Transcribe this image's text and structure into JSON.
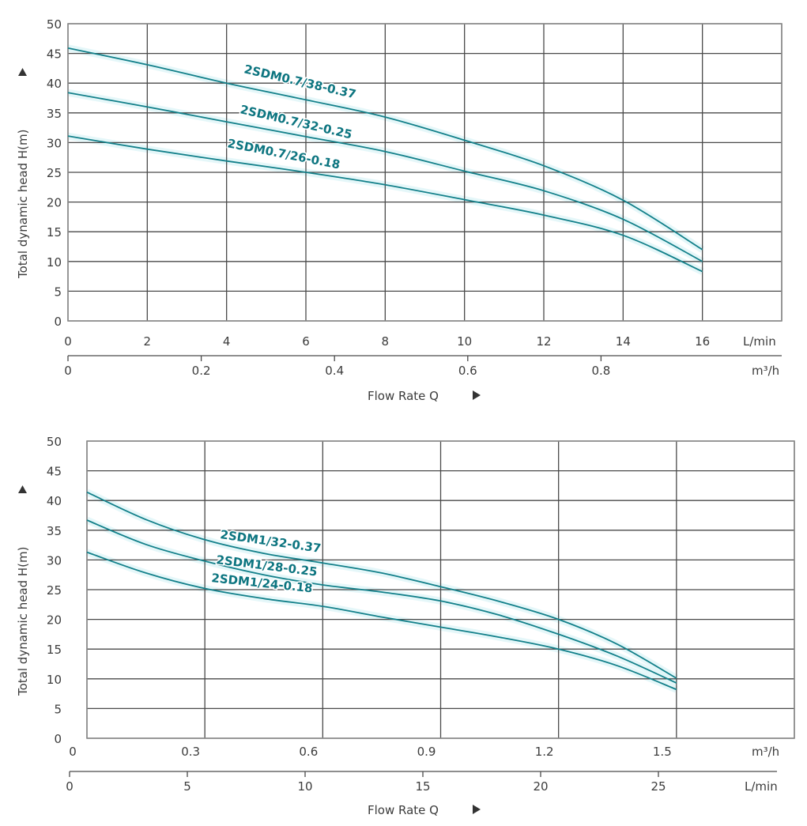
{
  "chart_data": [
    {
      "type": "line",
      "title": "",
      "ylabel": "Total dynamic head H(m)",
      "ylim": [
        0,
        50
      ],
      "yticks": [
        "0",
        "5",
        "10",
        "15",
        "20",
        "25",
        "30",
        "35",
        "40",
        "45",
        "50"
      ],
      "xlabel": "Flow Rate Q",
      "primary_x": {
        "unit": "L/min",
        "xlim": [
          0,
          18
        ],
        "ticks": [
          "0",
          "2",
          "4",
          "6",
          "8",
          "10",
          "12",
          "14",
          "16"
        ]
      },
      "secondary_x": {
        "unit": "m³/h",
        "ticks": [
          "0",
          "0.2",
          "0.4",
          "0.6",
          "0.8"
        ],
        "tick_values": [
          0,
          0.2,
          0.4,
          0.6,
          0.8
        ]
      },
      "grid": true,
      "x": [
        0,
        2,
        4,
        6,
        8,
        10,
        12,
        14,
        16
      ],
      "series": [
        {
          "name": "2SDM0.7/38-0.37",
          "values": [
            45.9,
            43.1,
            40.0,
            37.2,
            34.3,
            30.4,
            26.1,
            20.3,
            12.0
          ]
        },
        {
          "name": "2SDM0.7/32-0.25",
          "values": [
            38.4,
            36.0,
            33.5,
            31.0,
            28.5,
            25.2,
            21.9,
            17.1,
            10.0
          ]
        },
        {
          "name": "2SDM0.7/26-0.18",
          "values": [
            31.1,
            28.9,
            26.9,
            25.0,
            22.9,
            20.4,
            17.8,
            14.4,
            8.3
          ]
        }
      ]
    },
    {
      "type": "line",
      "title": "",
      "ylabel": "Total dynamic head H(m)",
      "ylim": [
        0,
        50
      ],
      "yticks": [
        "0",
        "5",
        "10",
        "15",
        "20",
        "25",
        "30",
        "35",
        "40",
        "45",
        "50"
      ],
      "xlabel": "Flow Rate Q",
      "primary_x": {
        "unit": "m³/h",
        "xlim": [
          0,
          1.8
        ],
        "ticks": [
          "0",
          "0.3",
          "0.6",
          "0.9",
          "1.2",
          "1.5"
        ]
      },
      "secondary_x": {
        "unit": "L/min",
        "ticks": [
          "0",
          "5",
          "10",
          "15",
          "20",
          "25"
        ],
        "tick_values": [
          0,
          5,
          10,
          15,
          20,
          25
        ]
      },
      "grid": true,
      "x": [
        0,
        0.15,
        0.3,
        0.45,
        0.6,
        0.75,
        0.9,
        1.05,
        1.2,
        1.35,
        1.5
      ],
      "series": [
        {
          "name": "2SDM1/32-0.37",
          "values": [
            41.4,
            36.8,
            33.4,
            31.1,
            29.5,
            27.8,
            25.5,
            23.0,
            20.0,
            15.8,
            10.1
          ]
        },
        {
          "name": "2SDM1/28-0.25",
          "values": [
            36.7,
            32.6,
            29.8,
            27.5,
            25.8,
            24.6,
            23.1,
            20.7,
            17.5,
            13.8,
            9.3
          ]
        },
        {
          "name": "2SDM1/24-0.18",
          "values": [
            31.3,
            27.8,
            25.2,
            23.5,
            22.2,
            20.4,
            18.7,
            17.0,
            15.0,
            12.2,
            8.2
          ]
        }
      ]
    }
  ],
  "colors": {
    "curve": "#13808a",
    "grid": "#4a4a4a",
    "text": "#3c3c3c"
  },
  "icons": {
    "y_arrow": "triangle-up",
    "x_arrow": "triangle-right"
  }
}
